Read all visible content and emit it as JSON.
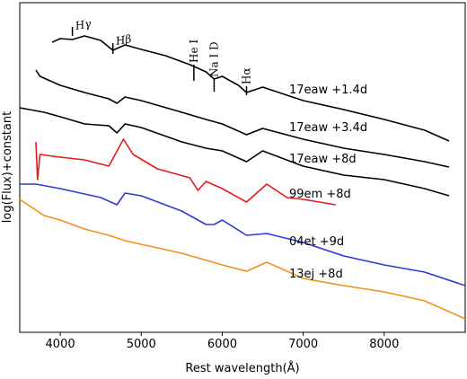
{
  "chart_data": {
    "type": "line",
    "xlabel": "Rest wavelength(Å)",
    "ylabel": "log(Flux)+constant",
    "xlim": [
      3500,
      9000
    ],
    "ylim": [
      0,
      367
    ],
    "xticks": [
      4000,
      5000,
      6000,
      7000,
      8000
    ],
    "annotations": [
      {
        "text": "Hγ",
        "x": 4150
      },
      {
        "text": "Hβ",
        "x": 4650
      },
      {
        "text": "He I",
        "x": 5650
      },
      {
        "text": "Na I D",
        "x": 5900
      },
      {
        "text": "Hα",
        "x": 6300
      }
    ],
    "series": [
      {
        "name": "17eaw +1.4d",
        "color": "#000000",
        "x": [
          3900,
          4000,
          4150,
          4300,
          4500,
          4650,
          4800,
          5000,
          5300,
          5600,
          5800,
          5900,
          6000,
          6200,
          6300,
          6500,
          7000,
          7500,
          8000,
          8500,
          8800
        ],
        "values": [
          323,
          327,
          326,
          330,
          325,
          314,
          320,
          315,
          308,
          298,
          290,
          282,
          285,
          275,
          267,
          273,
          258,
          248,
          237,
          225,
          213
        ]
      },
      {
        "name": "17eaw +3.4d",
        "color": "#000000",
        "x": [
          3700,
          3750,
          4000,
          4300,
          4600,
          4700,
          4800,
          5000,
          5500,
          5800,
          6000,
          6300,
          6500,
          7000,
          7500,
          8000,
          8500,
          8800
        ],
        "values": [
          292,
          285,
          275,
          267,
          260,
          255,
          262,
          258,
          245,
          237,
          232,
          220,
          227,
          215,
          205,
          198,
          190,
          184
        ]
      },
      {
        "name": "17eaw +8d",
        "color": "#000000",
        "x": [
          3500,
          3800,
          4000,
          4300,
          4600,
          4700,
          4800,
          5000,
          5500,
          5800,
          6000,
          6300,
          6500,
          7000,
          7500,
          8000,
          8500,
          8800
        ],
        "values": [
          250,
          245,
          240,
          232,
          230,
          222,
          232,
          228,
          212,
          205,
          202,
          190,
          202,
          185,
          175,
          170,
          160,
          152
        ]
      },
      {
        "name": "99em +8d",
        "color": "#e41a1c",
        "x": [
          3700,
          3720,
          3750,
          4000,
          4300,
          4600,
          4780,
          4900,
          5200,
          5600,
          5700,
          5800,
          6000,
          6300,
          6550,
          6800,
          7000,
          7400
        ],
        "values": [
          212,
          170,
          198,
          195,
          192,
          185,
          215,
          198,
          182,
          172,
          158,
          168,
          160,
          145,
          165,
          150,
          148,
          142
        ]
      },
      {
        "name": "04et +9d",
        "color": "#2b3bd6",
        "x": [
          3500,
          3700,
          4000,
          4500,
          4700,
          4800,
          5000,
          5500,
          5800,
          5900,
          6000,
          6300,
          6550,
          7000,
          7500,
          8000,
          8500,
          9000
        ],
        "values": [
          165,
          165,
          160,
          150,
          142,
          155,
          152,
          135,
          120,
          120,
          125,
          108,
          110,
          100,
          85,
          75,
          67,
          52
        ]
      },
      {
        "name": "13ej +8d",
        "color": "#f39019",
        "x": [
          3500,
          3800,
          4000,
          4300,
          4600,
          4800,
          5000,
          5500,
          6000,
          6300,
          6550,
          7000,
          7500,
          8000,
          8500,
          9000
        ],
        "values": [
          148,
          130,
          125,
          115,
          108,
          102,
          98,
          88,
          75,
          68,
          78,
          60,
          52,
          45,
          35,
          15
        ]
      }
    ]
  }
}
